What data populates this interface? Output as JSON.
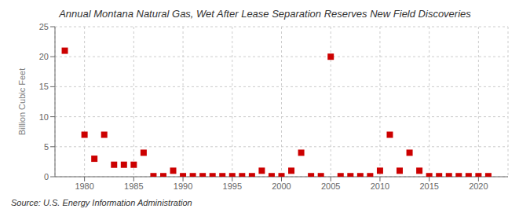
{
  "chart_data": {
    "type": "scatter",
    "title": "Annual Montana Natural Gas, Wet After Lease Separation Reserves New Field Discoveries",
    "y_label": "Billion Cubic Feet",
    "annotations": [
      "Source: U.S. Energy Information Administration"
    ],
    "x": [
      1978,
      1980,
      1981,
      1982,
      1983,
      1984,
      1985,
      1986,
      1987,
      1988,
      1989,
      1990,
      1991,
      1992,
      1993,
      1994,
      1995,
      1996,
      1997,
      1998,
      1999,
      2000,
      2001,
      2002,
      2003,
      2004,
      2005,
      2006,
      2007,
      2008,
      2009,
      2010,
      2011,
      2012,
      2013,
      2014,
      2015,
      2016,
      2017,
      2018,
      2019,
      2020,
      2021
    ],
    "values": [
      21.0,
      7.0,
      3.0,
      7.0,
      2.0,
      2.0,
      2.0,
      4.0,
      0.1,
      0.1,
      1.0,
      0.1,
      0.1,
      0.1,
      0.1,
      0.1,
      0.1,
      0.1,
      0.1,
      1.0,
      0.1,
      0.1,
      1.0,
      4.0,
      0.1,
      0.1,
      20.0,
      0.1,
      0.1,
      0.1,
      0.1,
      1.0,
      7.0,
      1.0,
      4.0,
      1.0,
      0.1,
      0.1,
      0.1,
      0.1,
      0.1,
      0.1,
      0.1
    ],
    "color": "#cc0000",
    "marker": "square",
    "xlim": [
      1977,
      2023
    ],
    "ylim": [
      0,
      25
    ],
    "xticks": [
      1980,
      1985,
      1990,
      1995,
      2000,
      2005,
      2010,
      2015,
      2020
    ],
    "yticks": [
      0,
      5,
      10,
      15,
      20,
      25
    ],
    "grid": true
  }
}
